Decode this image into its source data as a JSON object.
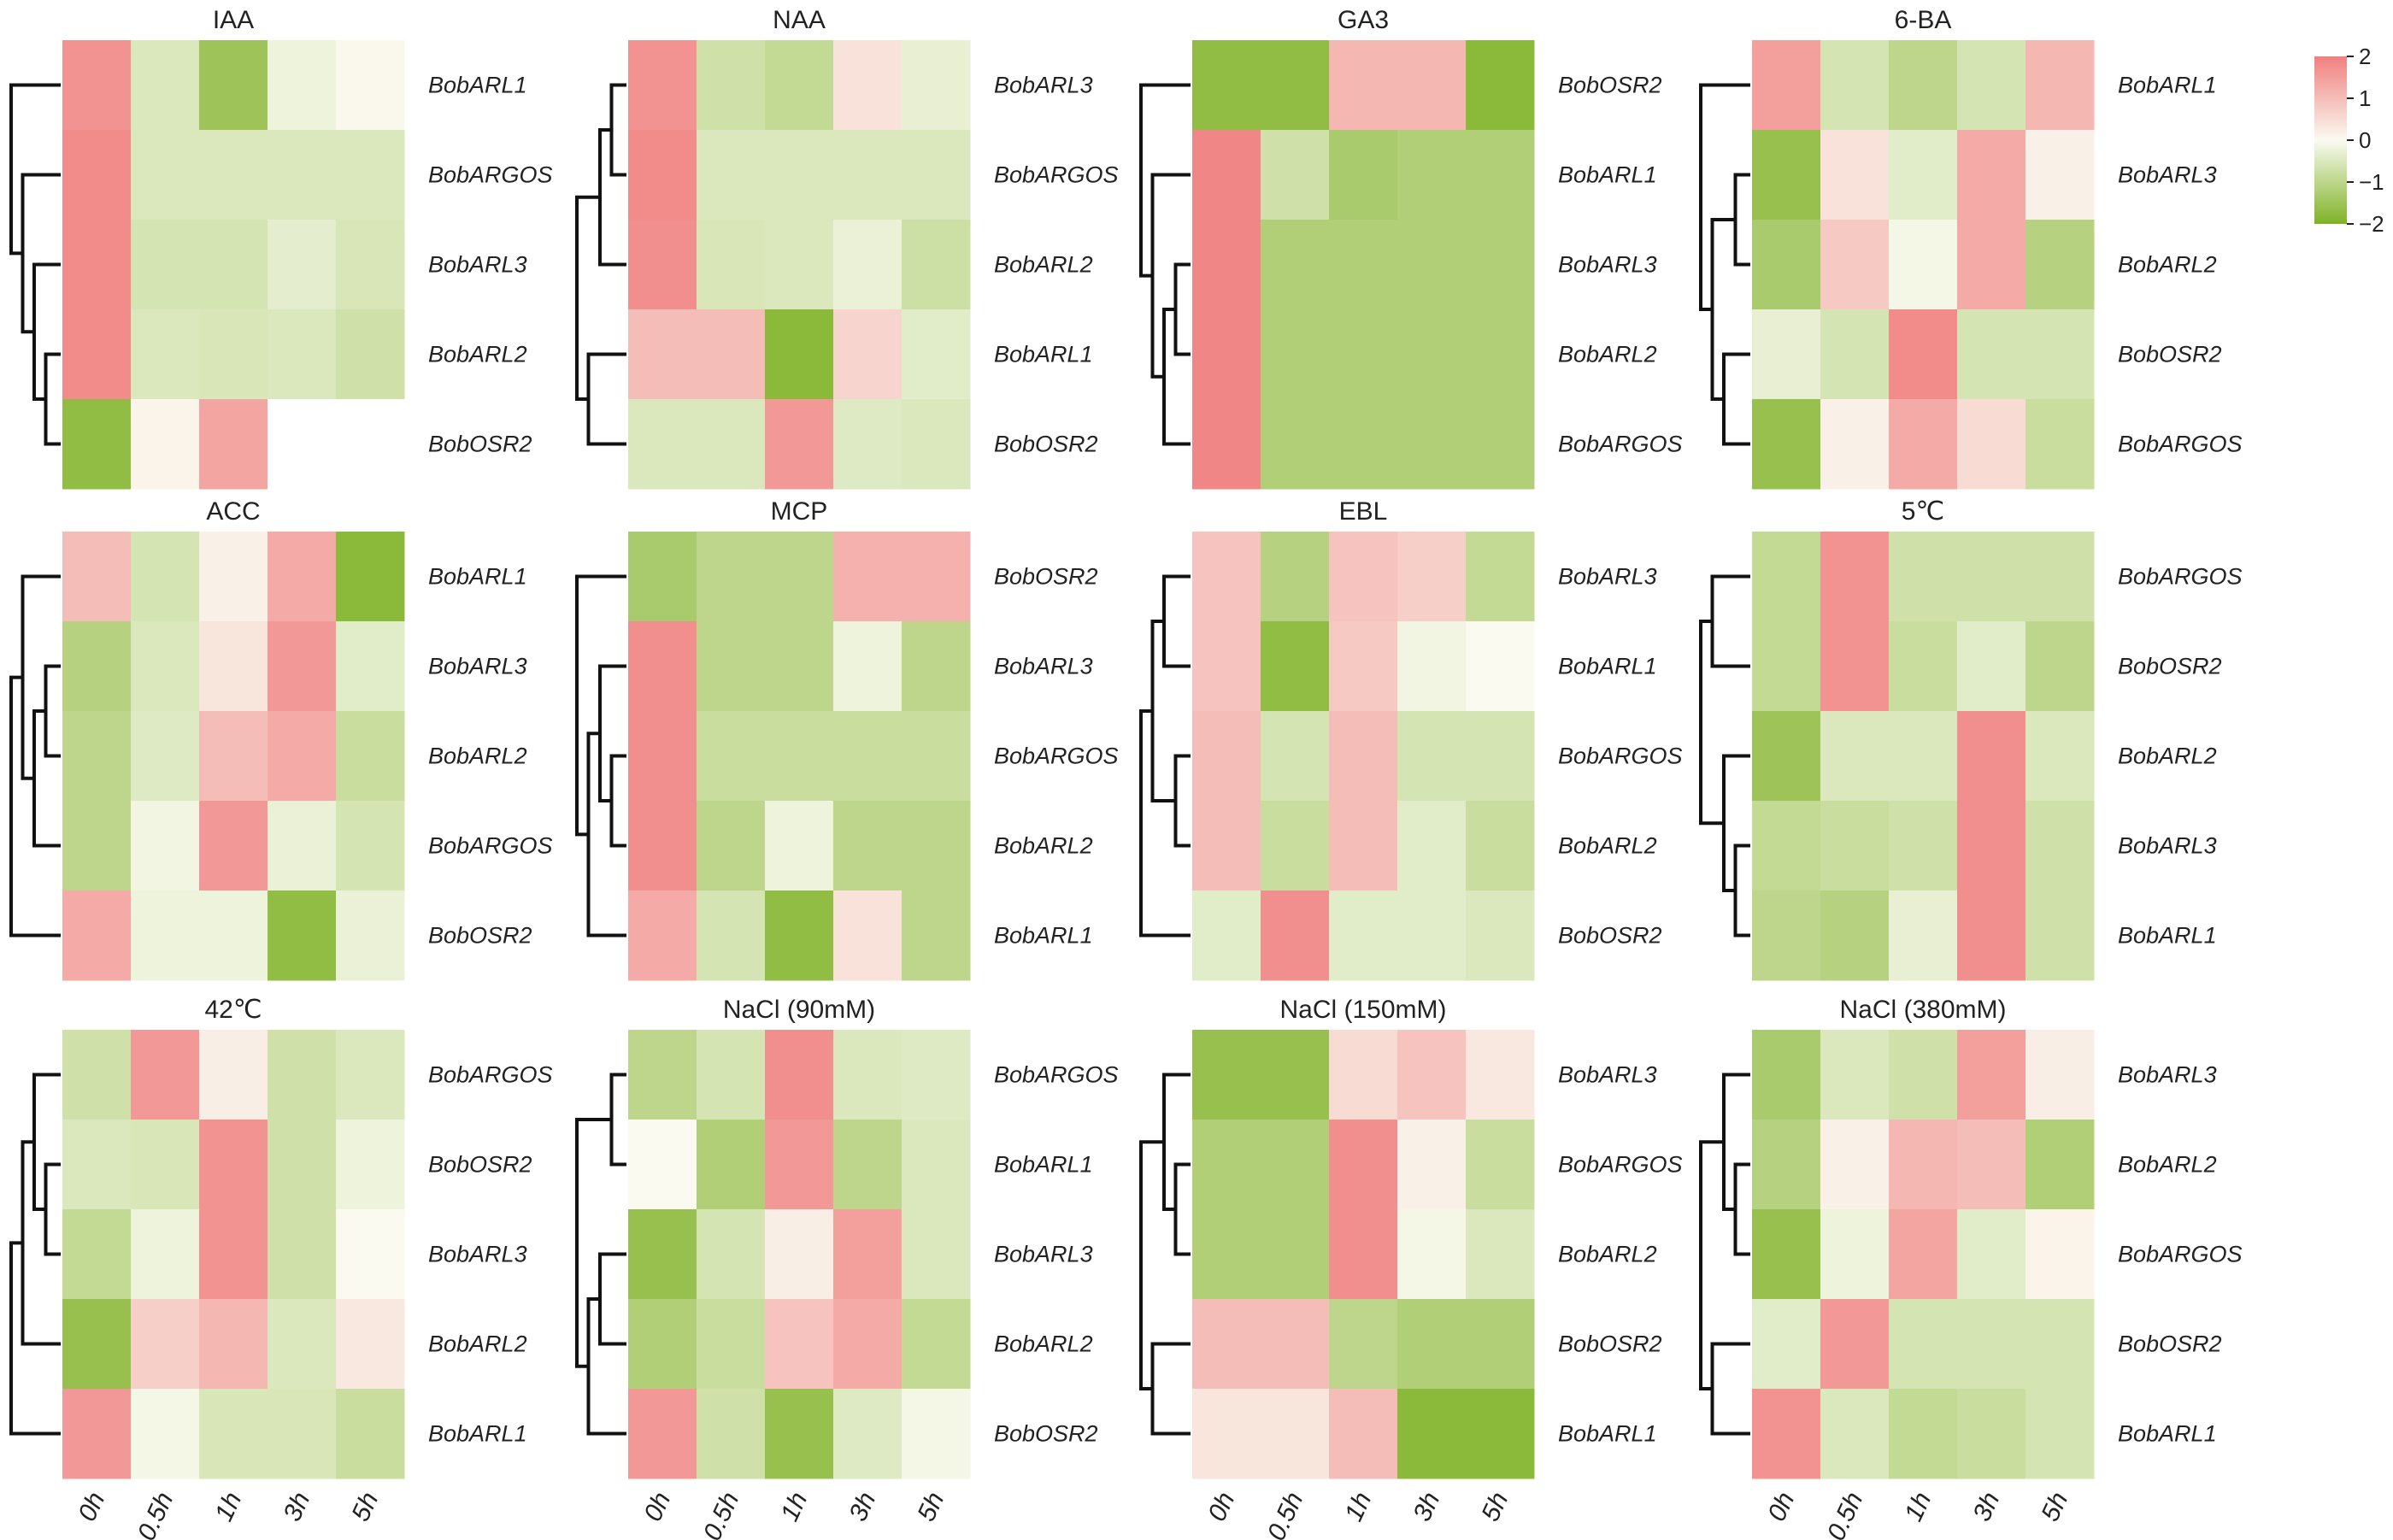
{
  "chart_data": [
    {
      "type": "heatmap",
      "title": "IAA",
      "rows": [
        "BobARL1",
        "BobARGOS",
        "BobARL3",
        "BobARL2",
        "BobOSR2"
      ],
      "columns": [
        "0h",
        "0.5h",
        "1h",
        "3h",
        "5h"
      ],
      "values": [
        [
          1.7,
          -0.5,
          -1.5,
          -0.2,
          0.05
        ],
        [
          1.8,
          -0.5,
          -0.5,
          -0.5,
          -0.5
        ],
        [
          1.8,
          -0.6,
          -0.6,
          -0.35,
          -0.55
        ],
        [
          1.8,
          -0.5,
          -0.55,
          -0.5,
          -0.7
        ],
        [
          -1.7,
          0.1,
          1.4,
          null,
          null
        ]
      ],
      "dendrogram": [
        [
          3,
          4
        ],
        [
          2,
          5
        ],
        [
          1,
          6
        ],
        [
          0,
          7
        ]
      ]
    },
    {
      "type": "heatmap",
      "title": "NAA",
      "rows": [
        "BobARL3",
        "BobARGOS",
        "BobARL2",
        "BobARL1",
        "BobOSR2"
      ],
      "columns": [
        "0h",
        "0.5h",
        "1h",
        "3h",
        "5h"
      ],
      "values": [
        [
          1.7,
          -0.7,
          -0.9,
          0.4,
          -0.3
        ],
        [
          1.8,
          -0.5,
          -0.5,
          -0.5,
          -0.5
        ],
        [
          1.75,
          -0.55,
          -0.5,
          -0.25,
          -0.75
        ],
        [
          1.0,
          1.0,
          -1.8,
          0.6,
          -0.4
        ],
        [
          -0.5,
          -0.5,
          1.6,
          -0.45,
          -0.5
        ]
      ],
      "dendrogram": [
        [
          0,
          1
        ],
        [
          5,
          2
        ],
        [
          3,
          4
        ],
        [
          6,
          7
        ]
      ]
    },
    {
      "type": "heatmap",
      "title": "GA3",
      "rows": [
        "BobOSR2",
        "BobARL1",
        "BobARL3",
        "BobARL2",
        "BobARGOS"
      ],
      "columns": [
        "0h",
        "0.5h",
        "1h",
        "3h",
        "5h"
      ],
      "values": [
        [
          -1.7,
          -1.7,
          1.1,
          1.1,
          -1.8
        ],
        [
          1.9,
          -0.7,
          -1.3,
          -1.2,
          -1.2
        ],
        [
          1.9,
          -1.2,
          -1.2,
          -1.2,
          -1.2
        ],
        [
          1.9,
          -1.2,
          -1.2,
          -1.2,
          -1.2
        ],
        [
          1.9,
          -1.2,
          -1.2,
          -1.2,
          -1.2
        ]
      ],
      "dendrogram": [
        [
          2,
          3
        ],
        [
          5,
          4
        ],
        [
          6,
          1
        ],
        [
          7,
          0
        ]
      ]
    },
    {
      "type": "heatmap",
      "title": "6-BA",
      "rows": [
        "BobARL1",
        "BobARL3",
        "BobARL2",
        "BobOSR2",
        "BobARGOS"
      ],
      "columns": [
        "0h",
        "0.5h",
        "1h",
        "3h",
        "5h"
      ],
      "values": [
        [
          1.5,
          -0.6,
          -1.0,
          -0.6,
          1.1
        ],
        [
          -1.6,
          0.4,
          -0.4,
          1.3,
          0.15
        ],
        [
          -1.3,
          0.8,
          -0.1,
          1.3,
          -1.1
        ],
        [
          -0.3,
          -0.6,
          1.8,
          -0.6,
          -0.6
        ],
        [
          -1.6,
          0.15,
          1.3,
          0.5,
          -0.8
        ]
      ],
      "dendrogram": [
        [
          1,
          2
        ],
        [
          3,
          4
        ],
        [
          5,
          6
        ],
        [
          0,
          7
        ]
      ]
    },
    {
      "type": "heatmap",
      "title": "ACC",
      "rows": [
        "BobARL1",
        "BobARL3",
        "BobARL2",
        "BobARGOS",
        "BobOSR2"
      ],
      "columns": [
        "0h",
        "0.5h",
        "1h",
        "3h",
        "5h"
      ],
      "values": [
        [
          1.0,
          -0.6,
          0.15,
          1.3,
          -1.8
        ],
        [
          -1.1,
          -0.5,
          0.35,
          1.6,
          -0.4
        ],
        [
          -1.0,
          -0.45,
          1.0,
          1.3,
          -0.8
        ],
        [
          -1.0,
          -0.15,
          1.6,
          -0.25,
          -0.6
        ],
        [
          1.3,
          -0.2,
          -0.2,
          -1.7,
          -0.25
        ]
      ],
      "dendrogram": [
        [
          1,
          2
        ],
        [
          5,
          3
        ],
        [
          6,
          0
        ],
        [
          7,
          4
        ]
      ]
    },
    {
      "type": "heatmap",
      "title": "MCP",
      "rows": [
        "BobOSR2",
        "BobARL3",
        "BobARGOS",
        "BobARL2",
        "BobARL1"
      ],
      "columns": [
        "0h",
        "0.5h",
        "1h",
        "3h",
        "5h"
      ],
      "values": [
        [
          -1.3,
          -1.0,
          -1.0,
          1.2,
          1.2
        ],
        [
          1.75,
          -1.0,
          -1.0,
          -0.2,
          -1.0
        ],
        [
          1.75,
          -0.8,
          -0.8,
          -0.8,
          -0.8
        ],
        [
          1.75,
          -1.0,
          -0.2,
          -1.0,
          -1.0
        ],
        [
          1.3,
          -0.6,
          -1.7,
          0.4,
          -1.0
        ]
      ],
      "dendrogram": [
        [
          2,
          3
        ],
        [
          5,
          1
        ],
        [
          6,
          4
        ],
        [
          7,
          0
        ]
      ]
    },
    {
      "type": "heatmap",
      "title": "EBL",
      "rows": [
        "BobARL3",
        "BobARL1",
        "BobARGOS",
        "BobARL2",
        "BobOSR2"
      ],
      "columns": [
        "0h",
        "0.5h",
        "1h",
        "3h",
        "5h"
      ],
      "values": [
        [
          0.9,
          -1.1,
          0.9,
          0.7,
          -0.9
        ],
        [
          0.9,
          -1.7,
          0.8,
          -0.15,
          0.0
        ],
        [
          1.0,
          -0.6,
          1.0,
          -0.6,
          -0.6
        ],
        [
          1.0,
          -0.8,
          1.0,
          -0.4,
          -0.8
        ],
        [
          -0.4,
          1.75,
          -0.4,
          -0.4,
          -0.5
        ]
      ],
      "dendrogram": [
        [
          2,
          3
        ],
        [
          0,
          1
        ],
        [
          5,
          6
        ],
        [
          7,
          4
        ]
      ]
    },
    {
      "type": "heatmap",
      "title": "5℃",
      "rows": [
        "BobARGOS",
        "BobOSR2",
        "BobARL2",
        "BobARL3",
        "BobARL1"
      ],
      "columns": [
        "0h",
        "0.5h",
        "1h",
        "3h",
        "5h"
      ],
      "values": [
        [
          -0.9,
          1.7,
          -0.7,
          -0.7,
          -0.7
        ],
        [
          -0.9,
          1.7,
          -0.8,
          -0.4,
          -1.0
        ],
        [
          -1.5,
          -0.5,
          -0.5,
          1.75,
          -0.5
        ],
        [
          -0.9,
          -0.8,
          -0.7,
          1.75,
          -0.7
        ],
        [
          -1.0,
          -1.1,
          -0.3,
          1.75,
          -0.7
        ]
      ],
      "dendrogram": [
        [
          3,
          4
        ],
        [
          2,
          5
        ],
        [
          0,
          1
        ],
        [
          6,
          7
        ]
      ]
    },
    {
      "type": "heatmap",
      "title": "42℃",
      "rows": [
        "BobARGOS",
        "BobOSR2",
        "BobARL3",
        "BobARL2",
        "BobARL1"
      ],
      "columns": [
        "0h",
        "0.5h",
        "1h",
        "3h",
        "5h"
      ],
      "values": [
        [
          -0.7,
          1.6,
          0.2,
          -0.7,
          -0.5
        ],
        [
          -0.5,
          -0.55,
          1.7,
          -0.7,
          -0.2
        ],
        [
          -0.9,
          -0.2,
          1.7,
          -0.7,
          0.0
        ],
        [
          -1.6,
          0.7,
          1.1,
          -0.5,
          0.3
        ],
        [
          1.6,
          -0.1,
          -0.55,
          -0.55,
          -0.8
        ]
      ],
      "dendrogram": [
        [
          1,
          2
        ],
        [
          0,
          5
        ],
        [
          6,
          3
        ],
        [
          7,
          4
        ]
      ]
    },
    {
      "type": "heatmap",
      "title": "NaCl (90mM)",
      "rows": [
        "BobARGOS",
        "BobARL1",
        "BobARL3",
        "BobARL2",
        "BobOSR2"
      ],
      "columns": [
        "0h",
        "0.5h",
        "1h",
        "3h",
        "5h"
      ],
      "values": [
        [
          -1.0,
          -0.6,
          1.75,
          -0.5,
          -0.45
        ],
        [
          0.0,
          -1.2,
          1.6,
          -1.0,
          -0.5
        ],
        [
          -1.6,
          -0.6,
          0.2,
          1.5,
          -0.5
        ],
        [
          -1.2,
          -0.8,
          0.9,
          1.3,
          -0.9
        ],
        [
          1.6,
          -0.7,
          -1.6,
          -0.45,
          -0.1
        ]
      ],
      "dendrogram": [
        [
          0,
          1
        ],
        [
          2,
          3
        ],
        [
          6,
          4
        ],
        [
          5,
          7
        ]
      ]
    },
    {
      "type": "heatmap",
      "title": "NaCl (150mM)",
      "rows": [
        "BobARL3",
        "BobARGOS",
        "BobARL2",
        "BobOSR2",
        "BobARL1"
      ],
      "columns": [
        "0h",
        "0.5h",
        "1h",
        "3h",
        "5h"
      ],
      "values": [
        [
          -1.6,
          -1.6,
          0.5,
          0.9,
          0.3
        ],
        [
          -1.2,
          -1.2,
          1.75,
          0.15,
          -0.8
        ],
        [
          -1.2,
          -1.2,
          1.75,
          -0.1,
          -0.5
        ],
        [
          1.0,
          1.0,
          -1.0,
          -1.2,
          -1.2
        ],
        [
          0.35,
          0.35,
          1.0,
          -1.8,
          -1.8
        ]
      ],
      "dendrogram": [
        [
          1,
          2
        ],
        [
          0,
          5
        ],
        [
          3,
          4
        ],
        [
          6,
          7
        ]
      ]
    },
    {
      "type": "heatmap",
      "title": "NaCl (380mM)",
      "rows": [
        "BobARL3",
        "BobARL2",
        "BobARGOS",
        "BobOSR2",
        "BobARL1"
      ],
      "columns": [
        "0h",
        "0.5h",
        "1h",
        "3h",
        "5h"
      ],
      "values": [
        [
          -1.3,
          -0.5,
          -0.7,
          1.5,
          0.2
        ],
        [
          -1.1,
          0.15,
          1.1,
          1.0,
          -1.2
        ],
        [
          -1.6,
          -0.2,
          1.4,
          -0.4,
          0.1
        ],
        [
          -0.4,
          1.6,
          -0.6,
          -0.6,
          -0.6
        ],
        [
          1.7,
          -0.5,
          -0.9,
          -0.8,
          -0.6
        ]
      ],
      "dendrogram": [
        [
          1,
          2
        ],
        [
          0,
          5
        ],
        [
          3,
          4
        ],
        [
          6,
          7
        ]
      ]
    }
  ],
  "legend": {
    "ticks": [
      2,
      1,
      0,
      -1,
      -2
    ],
    "tick_labels": [
      "2",
      "1",
      "0",
      "−1",
      "−2"
    ]
  },
  "colors": {
    "high": "#f08080",
    "mid": "#fafaf0",
    "low": "#7fb226"
  }
}
